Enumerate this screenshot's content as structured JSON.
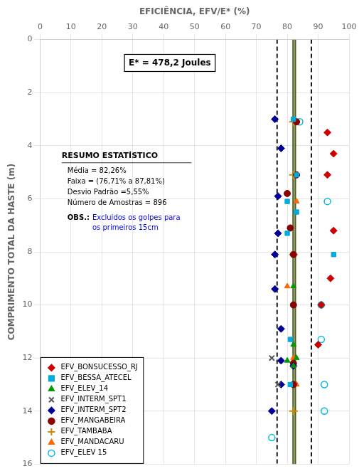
{
  "chart_data": {
    "type": "scatter",
    "xlabel": "EFICIÊNCIA, EFV/E* (%)",
    "ylabel": "COMPRIMENTO TOTAL DA HASTE (m)",
    "xlim": [
      0,
      100
    ],
    "ylim": [
      16,
      0
    ],
    "xticks": [
      0,
      10,
      20,
      30,
      40,
      50,
      60,
      70,
      80,
      90,
      100
    ],
    "yticks": [
      0,
      2,
      4,
      6,
      8,
      10,
      12,
      14,
      16
    ],
    "grid": true,
    "legend": "lower left",
    "reference_lines": [
      {
        "x": 76.71,
        "color": "#000000",
        "line_style": "dashed"
      },
      {
        "x": 87.81,
        "color": "#000000",
        "line_style": "dashed"
      },
      {
        "x": 81.91,
        "color": "#4a5c1a",
        "line_style": "solid"
      },
      {
        "x": 82.61,
        "color": "#4a5c1a",
        "line_style": "solid"
      }
    ],
    "box_text": "E* = 478,2 Joules",
    "stats_title": "RESUMO ESTATÍSTICO",
    "stats_lines": [
      "Média = 82,26%",
      "Faixa = (76,71% a 87,81%)",
      "Desvio Padrão =5,55%",
      "Número de Amostras = 896"
    ],
    "obs_label": "OBS.:",
    "obs_text": [
      "Excluidos os golpes para",
      "os primeiros 15cm"
    ],
    "obs_color": "#0000ff",
    "series": [
      {
        "name": "EFV_BONSUCESSO_RJ",
        "color": "#cc0000",
        "marker": "diamond",
        "points": [
          [
            93,
            3.5
          ],
          [
            95,
            4.3
          ],
          [
            93,
            5.1
          ],
          [
            95,
            7.2
          ],
          [
            94,
            9.0
          ],
          [
            91,
            10.0
          ],
          [
            90,
            11.5
          ]
        ]
      },
      {
        "name": "EFV_BESSA_ATECEL",
        "color": "#00aadd",
        "marker": "square",
        "points": [
          [
            82,
            3.0
          ],
          [
            83,
            5.1
          ],
          [
            80,
            6.1
          ],
          [
            83,
            6.5
          ],
          [
            80,
            7.3
          ],
          [
            95,
            8.1
          ],
          [
            81,
            11.3
          ],
          [
            81,
            13.0
          ],
          [
            91,
            10.0
          ]
        ]
      },
      {
        "name": "EFV_ELEV_14",
        "color": "#009900",
        "marker": "triangle",
        "points": [
          [
            82,
            9.3
          ],
          [
            82,
            11.5
          ],
          [
            83,
            12.0
          ],
          [
            82,
            12.3
          ],
          [
            80,
            12.1
          ]
        ]
      },
      {
        "name": "EFV_INTERM_SPT1",
        "color": "#555555",
        "marker": "x",
        "points": [
          [
            77,
            13.0
          ],
          [
            75,
            12.0
          ]
        ]
      },
      {
        "name": "EFV_INTERM_SPT2",
        "color": "#000099",
        "marker": "diamond",
        "points": [
          [
            76,
            3.0
          ],
          [
            78,
            4.1
          ],
          [
            77,
            5.9
          ],
          [
            77,
            7.3
          ],
          [
            76,
            8.1
          ],
          [
            76,
            9.4
          ],
          [
            78,
            10.9
          ],
          [
            78,
            12.1
          ],
          [
            78,
            13.0
          ],
          [
            75,
            14.0
          ],
          [
            82,
            12.3
          ]
        ]
      },
      {
        "name": "EFV_MANGABEIRA",
        "color": "#880000",
        "marker": "circle",
        "points": [
          [
            83,
            3.1
          ],
          [
            83,
            5.1
          ],
          [
            80,
            5.8
          ],
          [
            81,
            7.1
          ],
          [
            82,
            8.1
          ],
          [
            82,
            10.0
          ],
          [
            82,
            12.2
          ],
          [
            82,
            13.0
          ]
        ]
      },
      {
        "name": "EFV_TAMBABA",
        "color": "#cc8800",
        "marker": "plus",
        "points": [
          [
            82,
            3.1
          ],
          [
            82,
            5.1
          ],
          [
            82,
            8.1
          ],
          [
            82,
            14.0
          ]
        ]
      },
      {
        "name": "EFV_MANDACARU",
        "color": "#ff6600",
        "marker": "triangle",
        "points": [
          [
            83,
            3.1
          ],
          [
            83,
            6.1
          ],
          [
            80,
            9.3
          ],
          [
            82,
            12.0
          ],
          [
            83,
            13.0
          ]
        ]
      },
      {
        "name": "EFV_ELEV 15",
        "color": "#00bbdd",
        "marker": "open_circle",
        "points": [
          [
            84,
            3.1
          ],
          [
            93,
            6.1
          ],
          [
            75,
            15.0
          ],
          [
            91,
            10.0
          ],
          [
            91,
            11.3
          ],
          [
            92,
            13.0
          ],
          [
            92,
            14.0
          ]
        ]
      }
    ]
  }
}
